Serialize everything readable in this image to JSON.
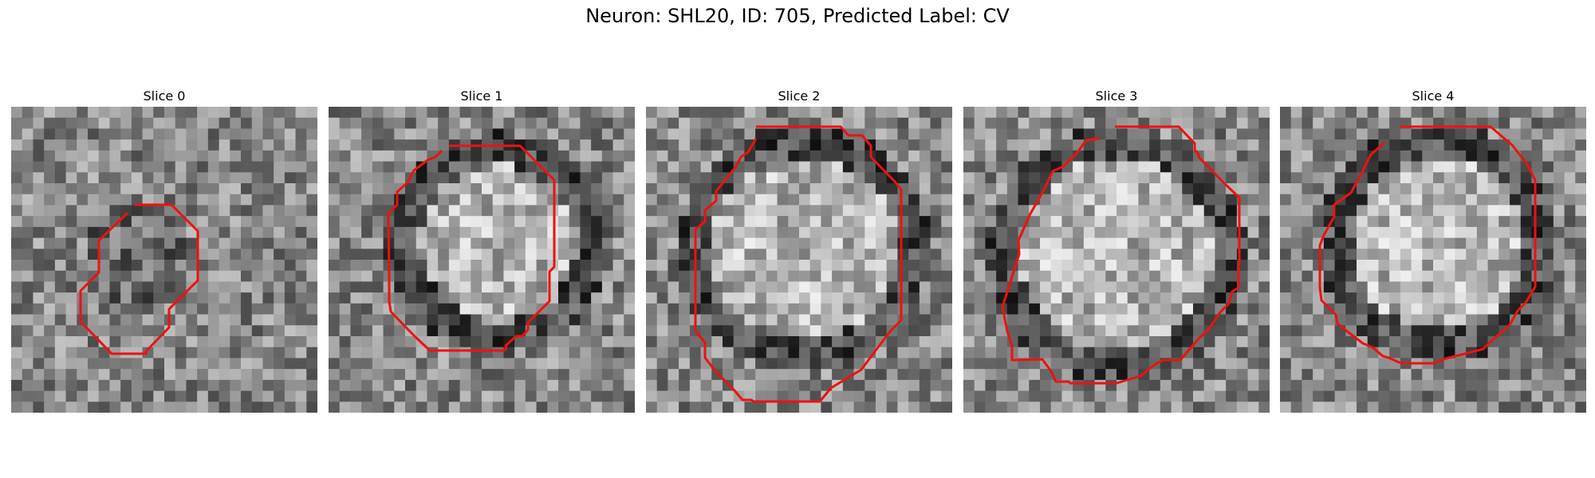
{
  "figure": {
    "title": "Neuron: SHL20, ID: 705, Predicted Label: CV"
  },
  "slices": [
    {
      "title": "Slice 0"
    },
    {
      "title": "Slice 1"
    },
    {
      "title": "Slice 2"
    },
    {
      "title": "Slice 3"
    },
    {
      "title": "Slice 4"
    }
  ],
  "colors": {
    "contour": "#ee1111",
    "background": "#ffffff"
  },
  "colormap": "grayscale"
}
